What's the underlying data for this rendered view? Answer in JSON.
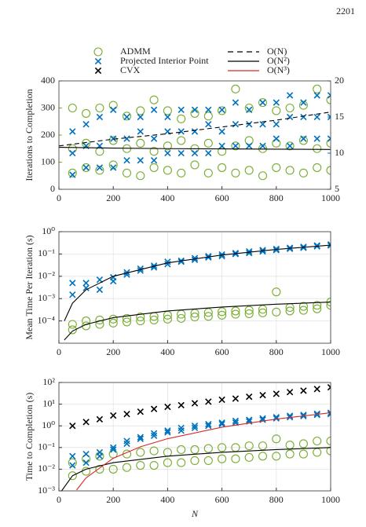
{
  "page_number": "2201",
  "chart_data": [
    {
      "type": "scatter",
      "ylabel": "Iterations to Completion",
      "xlim": [
        0,
        1000
      ],
      "xticks": [
        0,
        200,
        400,
        600,
        800,
        1000
      ],
      "ylim": [
        0,
        400
      ],
      "yticks": [
        0,
        100,
        200,
        300,
        400
      ],
      "ycolor": "#77ac30",
      "y2lim": [
        5,
        20
      ],
      "y2ticks": [
        5,
        10,
        15,
        20
      ],
      "y2color": "#0072bd",
      "grid": false,
      "series": [
        {
          "name": "ADMM",
          "color": "#77ac30",
          "marker": "circle",
          "x": [
            50,
            50,
            50,
            100,
            100,
            100,
            150,
            150,
            150,
            200,
            200,
            200,
            250,
            250,
            250,
            300,
            300,
            300,
            350,
            350,
            350,
            400,
            400,
            400,
            450,
            450,
            450,
            500,
            500,
            500,
            550,
            550,
            550,
            600,
            600,
            600,
            650,
            650,
            650,
            700,
            700,
            700,
            750,
            750,
            750,
            800,
            800,
            800,
            850,
            850,
            850,
            900,
            900,
            900,
            950,
            950,
            950,
            1000,
            1000,
            1000
          ],
          "values": [
            60,
            150,
            300,
            80,
            170,
            280,
            70,
            140,
            300,
            90,
            180,
            310,
            60,
            150,
            270,
            50,
            170,
            290,
            80,
            140,
            330,
            70,
            160,
            290,
            60,
            180,
            260,
            90,
            150,
            280,
            60,
            170,
            270,
            80,
            140,
            290,
            60,
            160,
            370,
            70,
            180,
            300,
            50,
            150,
            320,
            80,
            170,
            290,
            70,
            160,
            300,
            60,
            180,
            310,
            80,
            150,
            370,
            70,
            170,
            330
          ]
        },
        {
          "name": "Projected Interior Point",
          "color": "#0072bd",
          "marker": "cross",
          "axis": "y2",
          "x": [
            50,
            50,
            50,
            100,
            100,
            100,
            150,
            150,
            150,
            200,
            200,
            200,
            250,
            250,
            250,
            300,
            300,
            300,
            350,
            350,
            350,
            400,
            400,
            400,
            450,
            450,
            450,
            500,
            500,
            500,
            550,
            550,
            550,
            600,
            600,
            600,
            650,
            650,
            650,
            700,
            700,
            700,
            750,
            750,
            750,
            800,
            800,
            800,
            850,
            850,
            850,
            900,
            900,
            900,
            950,
            950,
            950,
            1000,
            1000,
            1000
          ],
          "values": [
            7,
            10,
            13,
            8,
            11,
            14,
            8,
            11,
            15,
            8,
            12,
            16,
            9,
            12,
            15,
            9,
            13,
            15,
            9,
            12,
            16,
            10,
            13,
            15,
            10,
            13,
            16,
            10,
            13,
            16,
            10,
            14,
            16,
            11,
            13,
            16,
            11,
            14,
            17,
            11,
            14,
            16,
            11,
            14,
            17,
            12,
            14,
            17,
            11,
            15,
            18,
            12,
            15,
            17,
            12,
            15,
            18,
            12,
            15,
            18
          ]
        },
        {
          "name": "O(N)",
          "color": "#000000",
          "style": "line",
          "dash": true,
          "x": [
            0,
            200,
            400,
            600,
            800,
            1000
          ],
          "values": [
            160,
            185,
            205,
            230,
            255,
            285
          ]
        },
        {
          "name": "O(N²)",
          "color": "#000000",
          "style": "line",
          "x": [
            0,
            200,
            400,
            600,
            800,
            1000
          ],
          "values": [
            155,
            152,
            150,
            149,
            148,
            147
          ]
        }
      ]
    },
    {
      "type": "scatter",
      "ylabel": "Mean Time Per Iteration (s)",
      "log": true,
      "xlim": [
        0,
        1000
      ],
      "xticks": [
        0,
        200,
        400,
        600,
        800,
        1000
      ],
      "ylim": [
        1e-05,
        1
      ],
      "yticks": [
        {
          "value": 0.0001,
          "label": "10⁻⁴"
        },
        {
          "value": 0.001,
          "label": "10⁻³"
        },
        {
          "value": 0.01,
          "label": "10⁻²"
        },
        {
          "value": 0.1,
          "label": "10⁻¹"
        },
        {
          "value": 1,
          "label": "10⁰"
        }
      ],
      "grid": true,
      "series": [
        {
          "color": "#77ac30",
          "marker": "circle",
          "x": [
            50,
            50,
            100,
            100,
            150,
            150,
            200,
            200,
            250,
            250,
            300,
            300,
            350,
            350,
            400,
            400,
            450,
            450,
            500,
            500,
            550,
            550,
            600,
            600,
            650,
            650,
            700,
            700,
            750,
            750,
            800,
            800,
            850,
            850,
            900,
            900,
            950,
            950,
            1000,
            1000
          ],
          "values": [
            4e-05,
            7e-05,
            6e-05,
            0.0001,
            7e-05,
            0.00011,
            8e-05,
            0.00012,
            9e-05,
            0.00013,
            0.0001,
            0.00015,
            0.00011,
            0.00016,
            0.00012,
            0.00018,
            0.00013,
            0.0002,
            0.00015,
            0.00022,
            0.00016,
            0.00024,
            0.00018,
            0.00026,
            0.0002,
            0.00028,
            0.00021,
            0.0003,
            0.00023,
            0.00033,
            0.00025,
            0.002,
            0.00028,
            0.0004,
            0.0003,
            0.00045,
            0.00035,
            0.0005,
            0.0005,
            0.0007
          ]
        },
        {
          "color": "#0072bd",
          "marker": "cross",
          "x": [
            50,
            50,
            100,
            100,
            150,
            150,
            200,
            200,
            250,
            250,
            300,
            300,
            350,
            350,
            400,
            400,
            450,
            450,
            500,
            500,
            550,
            550,
            600,
            600,
            650,
            650,
            700,
            700,
            750,
            750,
            800,
            800,
            850,
            850,
            900,
            900,
            950,
            950,
            1000,
            1000
          ],
          "values": [
            0.0015,
            0.005,
            0.003,
            0.005,
            0.0025,
            0.007,
            0.006,
            0.009,
            0.012,
            0.015,
            0.018,
            0.022,
            0.025,
            0.03,
            0.035,
            0.045,
            0.045,
            0.05,
            0.055,
            0.065,
            0.07,
            0.08,
            0.08,
            0.095,
            0.1,
            0.11,
            0.11,
            0.13,
            0.13,
            0.15,
            0.15,
            0.17,
            0.17,
            0.19,
            0.19,
            0.21,
            0.22,
            0.24,
            0.24,
            0.27
          ]
        },
        {
          "color": "#000000",
          "style": "line",
          "x": [
            20,
            50,
            100,
            200,
            400,
            600,
            800,
            1000
          ],
          "values": [
            1.4e-05,
            3.5e-05,
            7e-05,
            0.00014,
            0.00028,
            0.00042,
            0.00056,
            0.0007
          ]
        },
        {
          "color": "#000000",
          "style": "line",
          "x": [
            20,
            50,
            100,
            200,
            400,
            600,
            800,
            1000
          ],
          "values": [
            0.0001,
            0.000625,
            0.0025,
            0.01,
            0.04,
            0.09,
            0.16,
            0.25
          ]
        }
      ]
    },
    {
      "type": "scatter",
      "ylabel": "Time to Completion (s)",
      "xlabel": "N",
      "log": true,
      "xlim": [
        0,
        1000
      ],
      "xticks": [
        0,
        200,
        400,
        600,
        800,
        1000
      ],
      "ylim": [
        0.001,
        100
      ],
      "yticks": [
        {
          "value": 0.001,
          "label": "10⁻³"
        },
        {
          "value": 0.01,
          "label": "10⁻²"
        },
        {
          "value": 0.1,
          "label": "10⁻¹"
        },
        {
          "value": 1,
          "label": "10⁰"
        },
        {
          "value": 10,
          "label": "10¹"
        },
        {
          "value": 100,
          "label": "10²"
        }
      ],
      "grid": true,
      "series": [
        {
          "color": "#77ac30",
          "marker": "circle",
          "x": [
            50,
            50,
            100,
            100,
            150,
            150,
            200,
            200,
            250,
            250,
            300,
            300,
            350,
            350,
            400,
            400,
            450,
            450,
            500,
            500,
            550,
            550,
            600,
            600,
            650,
            650,
            700,
            700,
            750,
            750,
            800,
            800,
            850,
            850,
            900,
            900,
            950,
            950,
            1000,
            1000
          ],
          "values": [
            0.005,
            0.02,
            0.008,
            0.03,
            0.01,
            0.04,
            0.01,
            0.05,
            0.012,
            0.05,
            0.015,
            0.06,
            0.015,
            0.07,
            0.02,
            0.06,
            0.02,
            0.08,
            0.025,
            0.08,
            0.025,
            0.09,
            0.03,
            0.1,
            0.03,
            0.1,
            0.035,
            0.12,
            0.04,
            0.12,
            0.04,
            0.25,
            0.05,
            0.13,
            0.05,
            0.15,
            0.06,
            0.2,
            0.07,
            0.2
          ]
        },
        {
          "color": "#0072bd",
          "marker": "cross",
          "x": [
            50,
            50,
            100,
            100,
            150,
            150,
            200,
            200,
            250,
            250,
            300,
            300,
            350,
            350,
            400,
            400,
            450,
            450,
            500,
            500,
            550,
            550,
            600,
            600,
            650,
            650,
            700,
            700,
            750,
            750,
            800,
            800,
            850,
            850,
            900,
            900,
            950,
            950,
            1000,
            1000
          ],
          "values": [
            0.015,
            0.04,
            0.02,
            0.05,
            0.04,
            0.06,
            0.08,
            0.1,
            0.15,
            0.2,
            0.25,
            0.3,
            0.35,
            0.45,
            0.5,
            0.6,
            0.6,
            0.8,
            0.8,
            1,
            1,
            1.2,
            1.2,
            1.4,
            1.4,
            1.7,
            1.6,
            1.9,
            1.9,
            2.2,
            2.2,
            2.5,
            2.5,
            2.9,
            2.8,
            3.2,
            3.2,
            3.6,
            3.5,
            4
          ]
        },
        {
          "name": "CVX",
          "color": "#000000",
          "marker": "cross",
          "x": [
            50,
            100,
            150,
            200,
            250,
            300,
            350,
            400,
            450,
            500,
            550,
            600,
            650,
            700,
            750,
            800,
            850,
            900,
            950,
            1000
          ],
          "values": [
            1,
            1.5,
            2,
            3,
            3.5,
            4.5,
            6,
            7.5,
            9,
            11,
            13,
            16,
            18,
            22,
            26,
            30,
            36,
            42,
            50,
            60
          ]
        },
        {
          "color": "#000000",
          "style": "line",
          "x": [
            10,
            50,
            100,
            200,
            400,
            600,
            800,
            1000
          ],
          "values": [
            0.001,
            0.005,
            0.01,
            0.02,
            0.04,
            0.06,
            0.08,
            0.1
          ]
        },
        {
          "name": "O(N³)",
          "color": "#d62728",
          "style": "line",
          "x": [
            65,
            100,
            200,
            300,
            400,
            600,
            800,
            1000
          ],
          "values": [
            0.0011,
            0.004,
            0.032,
            0.108,
            0.256,
            0.864,
            2.048,
            4
          ]
        }
      ]
    }
  ]
}
